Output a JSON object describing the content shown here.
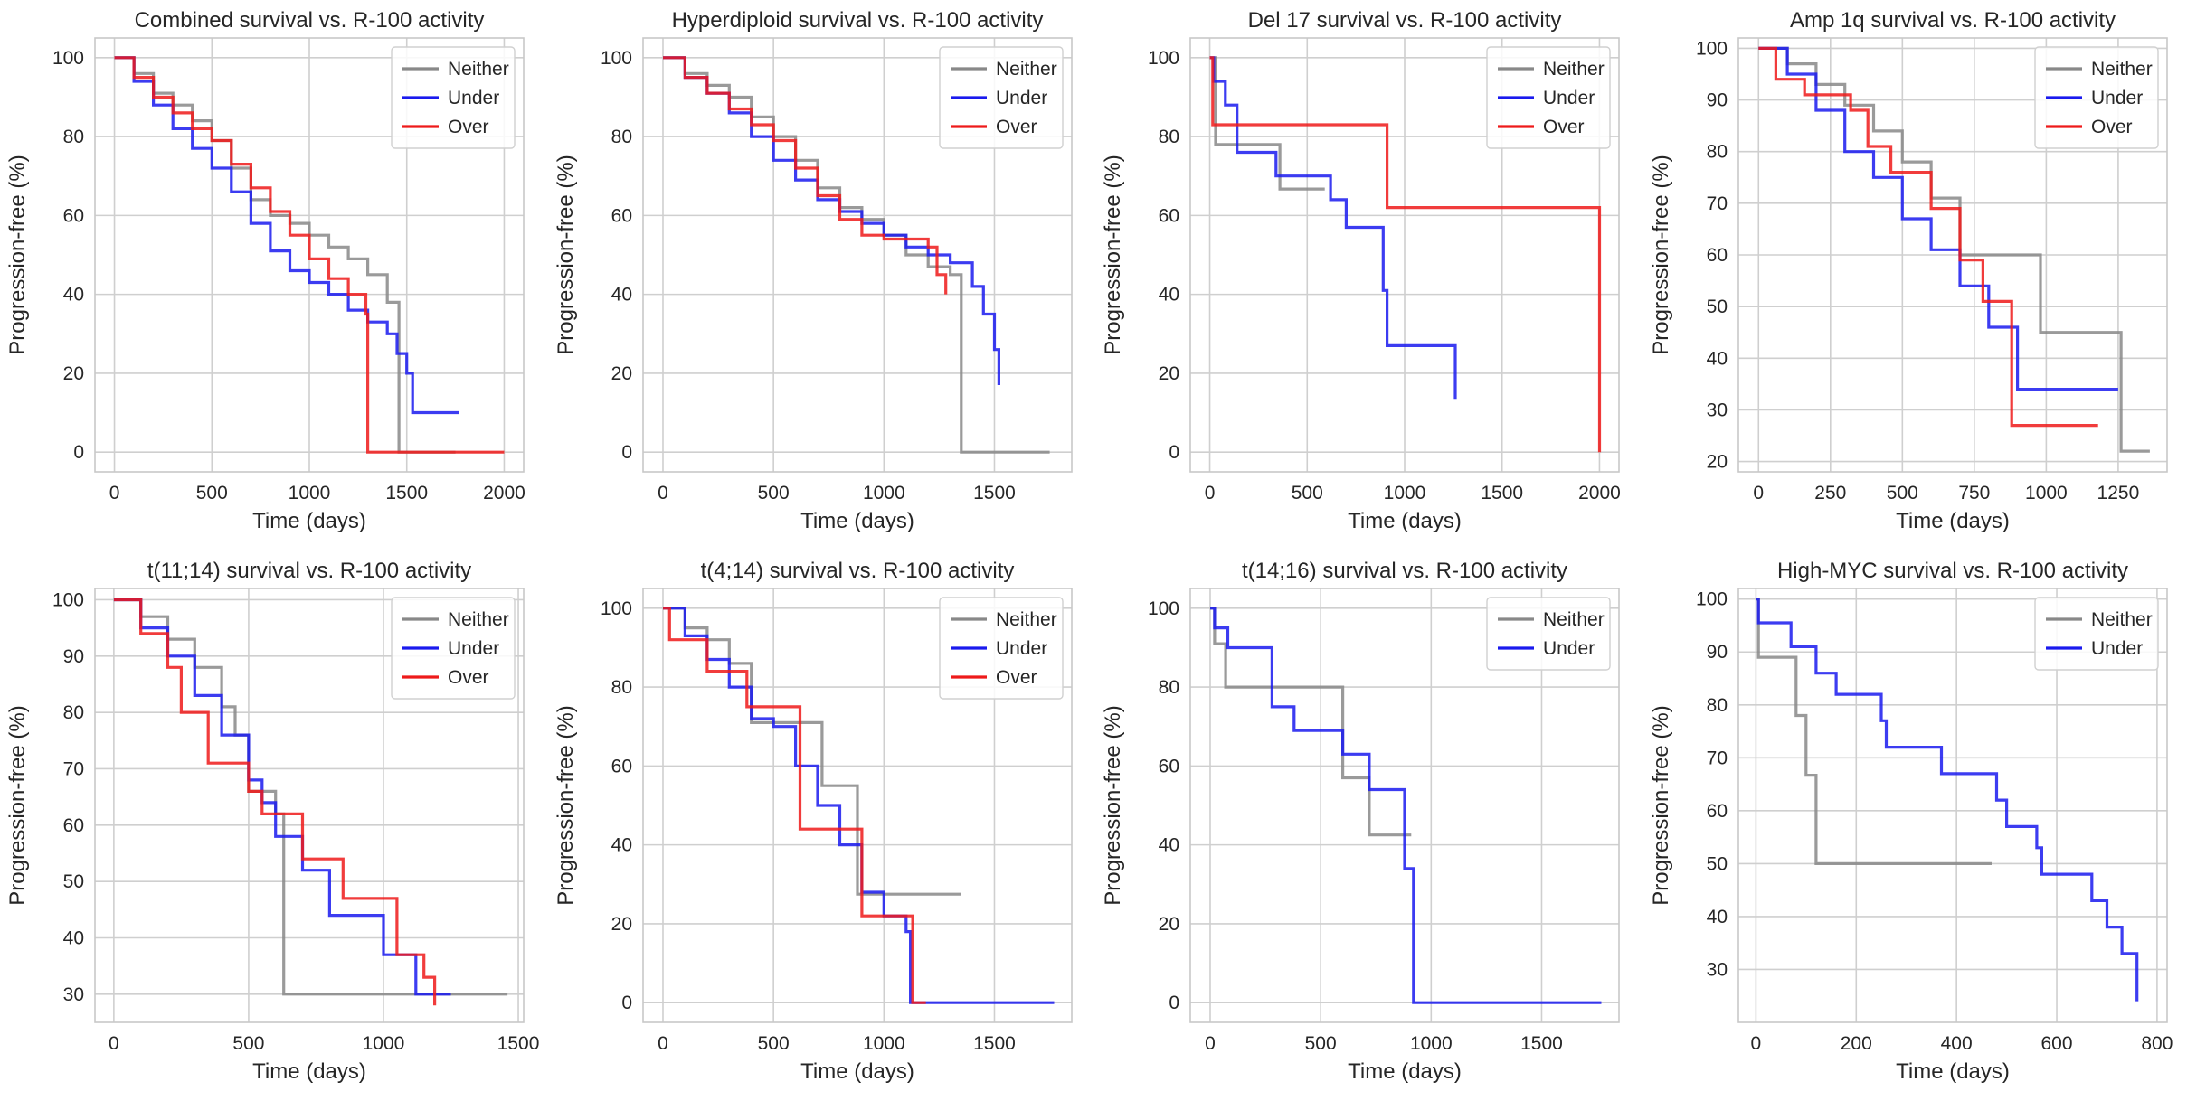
{
  "colors": {
    "Neither": "#888888",
    "Under": "#1a1aee",
    "Over": "#ee1a1a",
    "grid": "#cfcfcf",
    "frame": "#c8c8c8"
  },
  "chart_data": [
    {
      "type": "line",
      "title": "Combined survival vs. R-100 activity",
      "xlabel": "Time (days)",
      "ylabel": "Progression-free (%)",
      "xlim": [
        -100,
        2100
      ],
      "ylim": [
        -5,
        105
      ],
      "xticks": [
        0,
        500,
        1000,
        1500,
        2000
      ],
      "yticks": [
        0,
        20,
        40,
        60,
        80,
        100
      ],
      "grid": true,
      "legend": "top-right",
      "series": [
        {
          "name": "Neither",
          "x": [
            0,
            100,
            200,
            300,
            400,
            500,
            600,
            700,
            800,
            900,
            1000,
            1100,
            1200,
            1300,
            1400,
            1450,
            1460,
            1750
          ],
          "y": [
            100,
            96,
            91,
            88,
            84,
            79,
            72,
            64,
            60,
            58,
            55,
            52,
            49,
            45,
            38,
            38,
            0,
            0
          ]
        },
        {
          "name": "Under",
          "x": [
            0,
            100,
            200,
            300,
            400,
            500,
            600,
            700,
            800,
            900,
            1000,
            1100,
            1200,
            1300,
            1400,
            1450,
            1500,
            1530,
            1770
          ],
          "y": [
            100,
            94,
            88,
            82,
            77,
            72,
            66,
            58,
            51,
            46,
            43,
            40,
            36,
            33,
            30,
            25,
            20,
            10,
            10
          ]
        },
        {
          "name": "Over",
          "x": [
            0,
            100,
            200,
            300,
            400,
            500,
            600,
            700,
            800,
            900,
            1000,
            1100,
            1200,
            1290,
            1300,
            2000
          ],
          "y": [
            100,
            95,
            90,
            86,
            82,
            79,
            73,
            67,
            61,
            55,
            49,
            44,
            40,
            35,
            0,
            0
          ]
        }
      ]
    },
    {
      "type": "line",
      "title": "Hyperdiploid survival vs. R-100 activity",
      "xlabel": "Time (days)",
      "ylabel": "Progression-free (%)",
      "xlim": [
        -90,
        1850
      ],
      "ylim": [
        -5,
        105
      ],
      "xticks": [
        0,
        500,
        1000,
        1500
      ],
      "yticks": [
        0,
        20,
        40,
        60,
        80,
        100
      ],
      "grid": true,
      "legend": "top-right",
      "series": [
        {
          "name": "Neither",
          "x": [
            0,
            100,
            200,
            300,
            400,
            500,
            600,
            700,
            800,
            900,
            1000,
            1100,
            1200,
            1300,
            1340,
            1350,
            1750
          ],
          "y": [
            100,
            96,
            93,
            90,
            85,
            80,
            74,
            67,
            62,
            59,
            55,
            50,
            47,
            45,
            45,
            0,
            0
          ]
        },
        {
          "name": "Under",
          "x": [
            0,
            100,
            200,
            300,
            400,
            500,
            600,
            700,
            800,
            900,
            1000,
            1100,
            1200,
            1300,
            1400,
            1450,
            1500,
            1520
          ],
          "y": [
            100,
            95,
            91,
            86,
            80,
            74,
            69,
            64,
            61,
            58,
            55,
            52,
            50,
            48,
            42,
            35,
            26,
            17
          ]
        },
        {
          "name": "Over",
          "x": [
            0,
            100,
            200,
            300,
            400,
            500,
            600,
            700,
            800,
            900,
            1000,
            1100,
            1200,
            1240,
            1280
          ],
          "y": [
            100,
            95,
            91,
            87,
            83,
            79,
            72,
            65,
            59,
            55,
            54,
            54,
            52,
            45,
            40
          ]
        }
      ]
    },
    {
      "type": "line",
      "title": "Del 17 survival vs. R-100 activity",
      "xlabel": "Time (days)",
      "ylabel": "Progression-free (%)",
      "xlim": [
        -100,
        2100
      ],
      "ylim": [
        -5,
        105
      ],
      "xticks": [
        0,
        500,
        1000,
        1500,
        2000
      ],
      "yticks": [
        0,
        20,
        40,
        60,
        80,
        100
      ],
      "grid": true,
      "legend": "top-right",
      "series": [
        {
          "name": "Neither",
          "x": [
            0,
            30,
            330,
            360,
            590
          ],
          "y": [
            100,
            78,
            78,
            66.7,
            66.7
          ]
        },
        {
          "name": "Under",
          "x": [
            0,
            20,
            80,
            140,
            340,
            620,
            700,
            890,
            910,
            1260
          ],
          "y": [
            100,
            94,
            88,
            76,
            70,
            64,
            57,
            41,
            27,
            13.5
          ]
        },
        {
          "name": "Over",
          "x": [
            0,
            15,
            890,
            910,
            2000
          ],
          "y": [
            100,
            83,
            83,
            62,
            0
          ]
        }
      ]
    },
    {
      "type": "line",
      "title": "Amp 1q survival vs. R-100 activity",
      "xlabel": "Time (days)",
      "ylabel": "Progression-free (%)",
      "xlim": [
        -70,
        1420
      ],
      "ylim": [
        18,
        102
      ],
      "xticks": [
        0,
        250,
        500,
        750,
        1000,
        1250
      ],
      "yticks": [
        20,
        30,
        40,
        50,
        60,
        70,
        80,
        90,
        100
      ],
      "grid": true,
      "legend": "top-right",
      "series": [
        {
          "name": "Neither",
          "x": [
            0,
            100,
            200,
            300,
            400,
            500,
            600,
            700,
            980,
            1260,
            1360
          ],
          "y": [
            100,
            97,
            93,
            89,
            84,
            78,
            71,
            60,
            45,
            22,
            22
          ]
        },
        {
          "name": "Under",
          "x": [
            0,
            100,
            200,
            300,
            400,
            500,
            600,
            700,
            800,
            900,
            1250
          ],
          "y": [
            100,
            95,
            88,
            80,
            75,
            67,
            61,
            54,
            46,
            34,
            34
          ]
        },
        {
          "name": "Over",
          "x": [
            0,
            60,
            160,
            320,
            380,
            460,
            600,
            700,
            780,
            880,
            1180
          ],
          "y": [
            100,
            94,
            91,
            88,
            81,
            76,
            69,
            59,
            51,
            27,
            27
          ]
        }
      ]
    },
    {
      "type": "line",
      "title": "t(11;14) survival vs. R-100 activity",
      "xlabel": "Time (days)",
      "ylabel": "Progression-free (%)",
      "xlim": [
        -70,
        1520
      ],
      "ylim": [
        25,
        102
      ],
      "xticks": [
        0,
        500,
        1000,
        1500
      ],
      "yticks": [
        30,
        40,
        50,
        60,
        70,
        80,
        90,
        100
      ],
      "grid": true,
      "legend": "top-right",
      "series": [
        {
          "name": "Neither",
          "x": [
            0,
            100,
            200,
            300,
            400,
            450,
            500,
            600,
            630,
            1460
          ],
          "y": [
            100,
            97,
            93,
            88,
            81,
            76,
            66,
            62,
            30,
            30
          ]
        },
        {
          "name": "Under",
          "x": [
            0,
            100,
            200,
            300,
            400,
            500,
            550,
            600,
            700,
            800,
            1000,
            1120,
            1250
          ],
          "y": [
            100,
            95,
            90,
            83,
            76,
            68,
            64,
            58,
            52,
            44,
            37,
            30,
            30
          ]
        },
        {
          "name": "Over",
          "x": [
            0,
            100,
            200,
            250,
            350,
            500,
            550,
            700,
            850,
            1050,
            1150,
            1190
          ],
          "y": [
            100,
            94,
            88,
            80,
            71,
            66,
            62,
            54,
            47,
            37,
            33,
            28
          ]
        }
      ]
    },
    {
      "type": "line",
      "title": "t(4;14) survival vs. R-100 activity",
      "xlabel": "Time (days)",
      "ylabel": "Progression-free (%)",
      "xlim": [
        -90,
        1850
      ],
      "ylim": [
        -5,
        105
      ],
      "xticks": [
        0,
        500,
        1000,
        1500
      ],
      "yticks": [
        0,
        20,
        40,
        60,
        80,
        100
      ],
      "grid": true,
      "legend": "top-right",
      "series": [
        {
          "name": "Neither",
          "x": [
            0,
            100,
            200,
            300,
            400,
            500,
            600,
            700,
            720,
            840,
            880,
            1350
          ],
          "y": [
            100,
            95,
            92,
            86,
            71,
            71,
            71,
            71,
            55,
            55,
            27.5,
            27.5
          ]
        },
        {
          "name": "Under",
          "x": [
            0,
            100,
            200,
            300,
            400,
            500,
            600,
            700,
            800,
            900,
            1000,
            1100,
            1120,
            1770
          ],
          "y": [
            100,
            93,
            87,
            80,
            72,
            70,
            60,
            50,
            40,
            28,
            22,
            18,
            0,
            0
          ]
        },
        {
          "name": "Over",
          "x": [
            0,
            30,
            200,
            380,
            600,
            620,
            880,
            900,
            1100,
            1130,
            1190
          ],
          "y": [
            100,
            92,
            84,
            75,
            75,
            44,
            44,
            22,
            22,
            0,
            0
          ]
        }
      ]
    },
    {
      "type": "line",
      "title": "t(14;16) survival vs. R-100 activity",
      "xlabel": "Time (days)",
      "ylabel": "Progression-free (%)",
      "xlim": [
        -90,
        1850
      ],
      "ylim": [
        -5,
        105
      ],
      "xticks": [
        0,
        500,
        1000,
        1500
      ],
      "yticks": [
        0,
        20,
        40,
        60,
        80,
        100
      ],
      "grid": true,
      "legend": "top-right",
      "series": [
        {
          "name": "Neither",
          "x": [
            0,
            20,
            70,
            570,
            600,
            720,
            910
          ],
          "y": [
            100,
            91,
            80,
            80,
            57,
            42.5,
            42.5
          ]
        },
        {
          "name": "Under",
          "x": [
            0,
            20,
            80,
            280,
            380,
            600,
            720,
            880,
            920,
            1770
          ],
          "y": [
            100,
            95,
            90,
            75,
            69,
            63,
            54,
            34,
            0,
            0
          ]
        }
      ]
    },
    {
      "type": "line",
      "title": "High-MYC survival vs. R-100 activity",
      "xlabel": "Time (days)",
      "ylabel": "Progression-free (%)",
      "xlim": [
        -35,
        820
      ],
      "ylim": [
        20,
        102
      ],
      "xticks": [
        0,
        200,
        400,
        600,
        800
      ],
      "yticks": [
        30,
        40,
        50,
        60,
        70,
        80,
        90,
        100
      ],
      "grid": true,
      "legend": "top-right",
      "series": [
        {
          "name": "Neither",
          "x": [
            0,
            5,
            60,
            80,
            100,
            120,
            470
          ],
          "y": [
            100,
            89,
            89,
            78,
            66.7,
            50,
            50
          ]
        },
        {
          "name": "Under",
          "x": [
            0,
            5,
            70,
            120,
            160,
            250,
            260,
            370,
            480,
            500,
            560,
            570,
            670,
            700,
            730,
            760
          ],
          "y": [
            100,
            95.5,
            91,
            86,
            82,
            77,
            72,
            67,
            62,
            57,
            53,
            48,
            43,
            38,
            33,
            24
          ]
        }
      ]
    }
  ]
}
